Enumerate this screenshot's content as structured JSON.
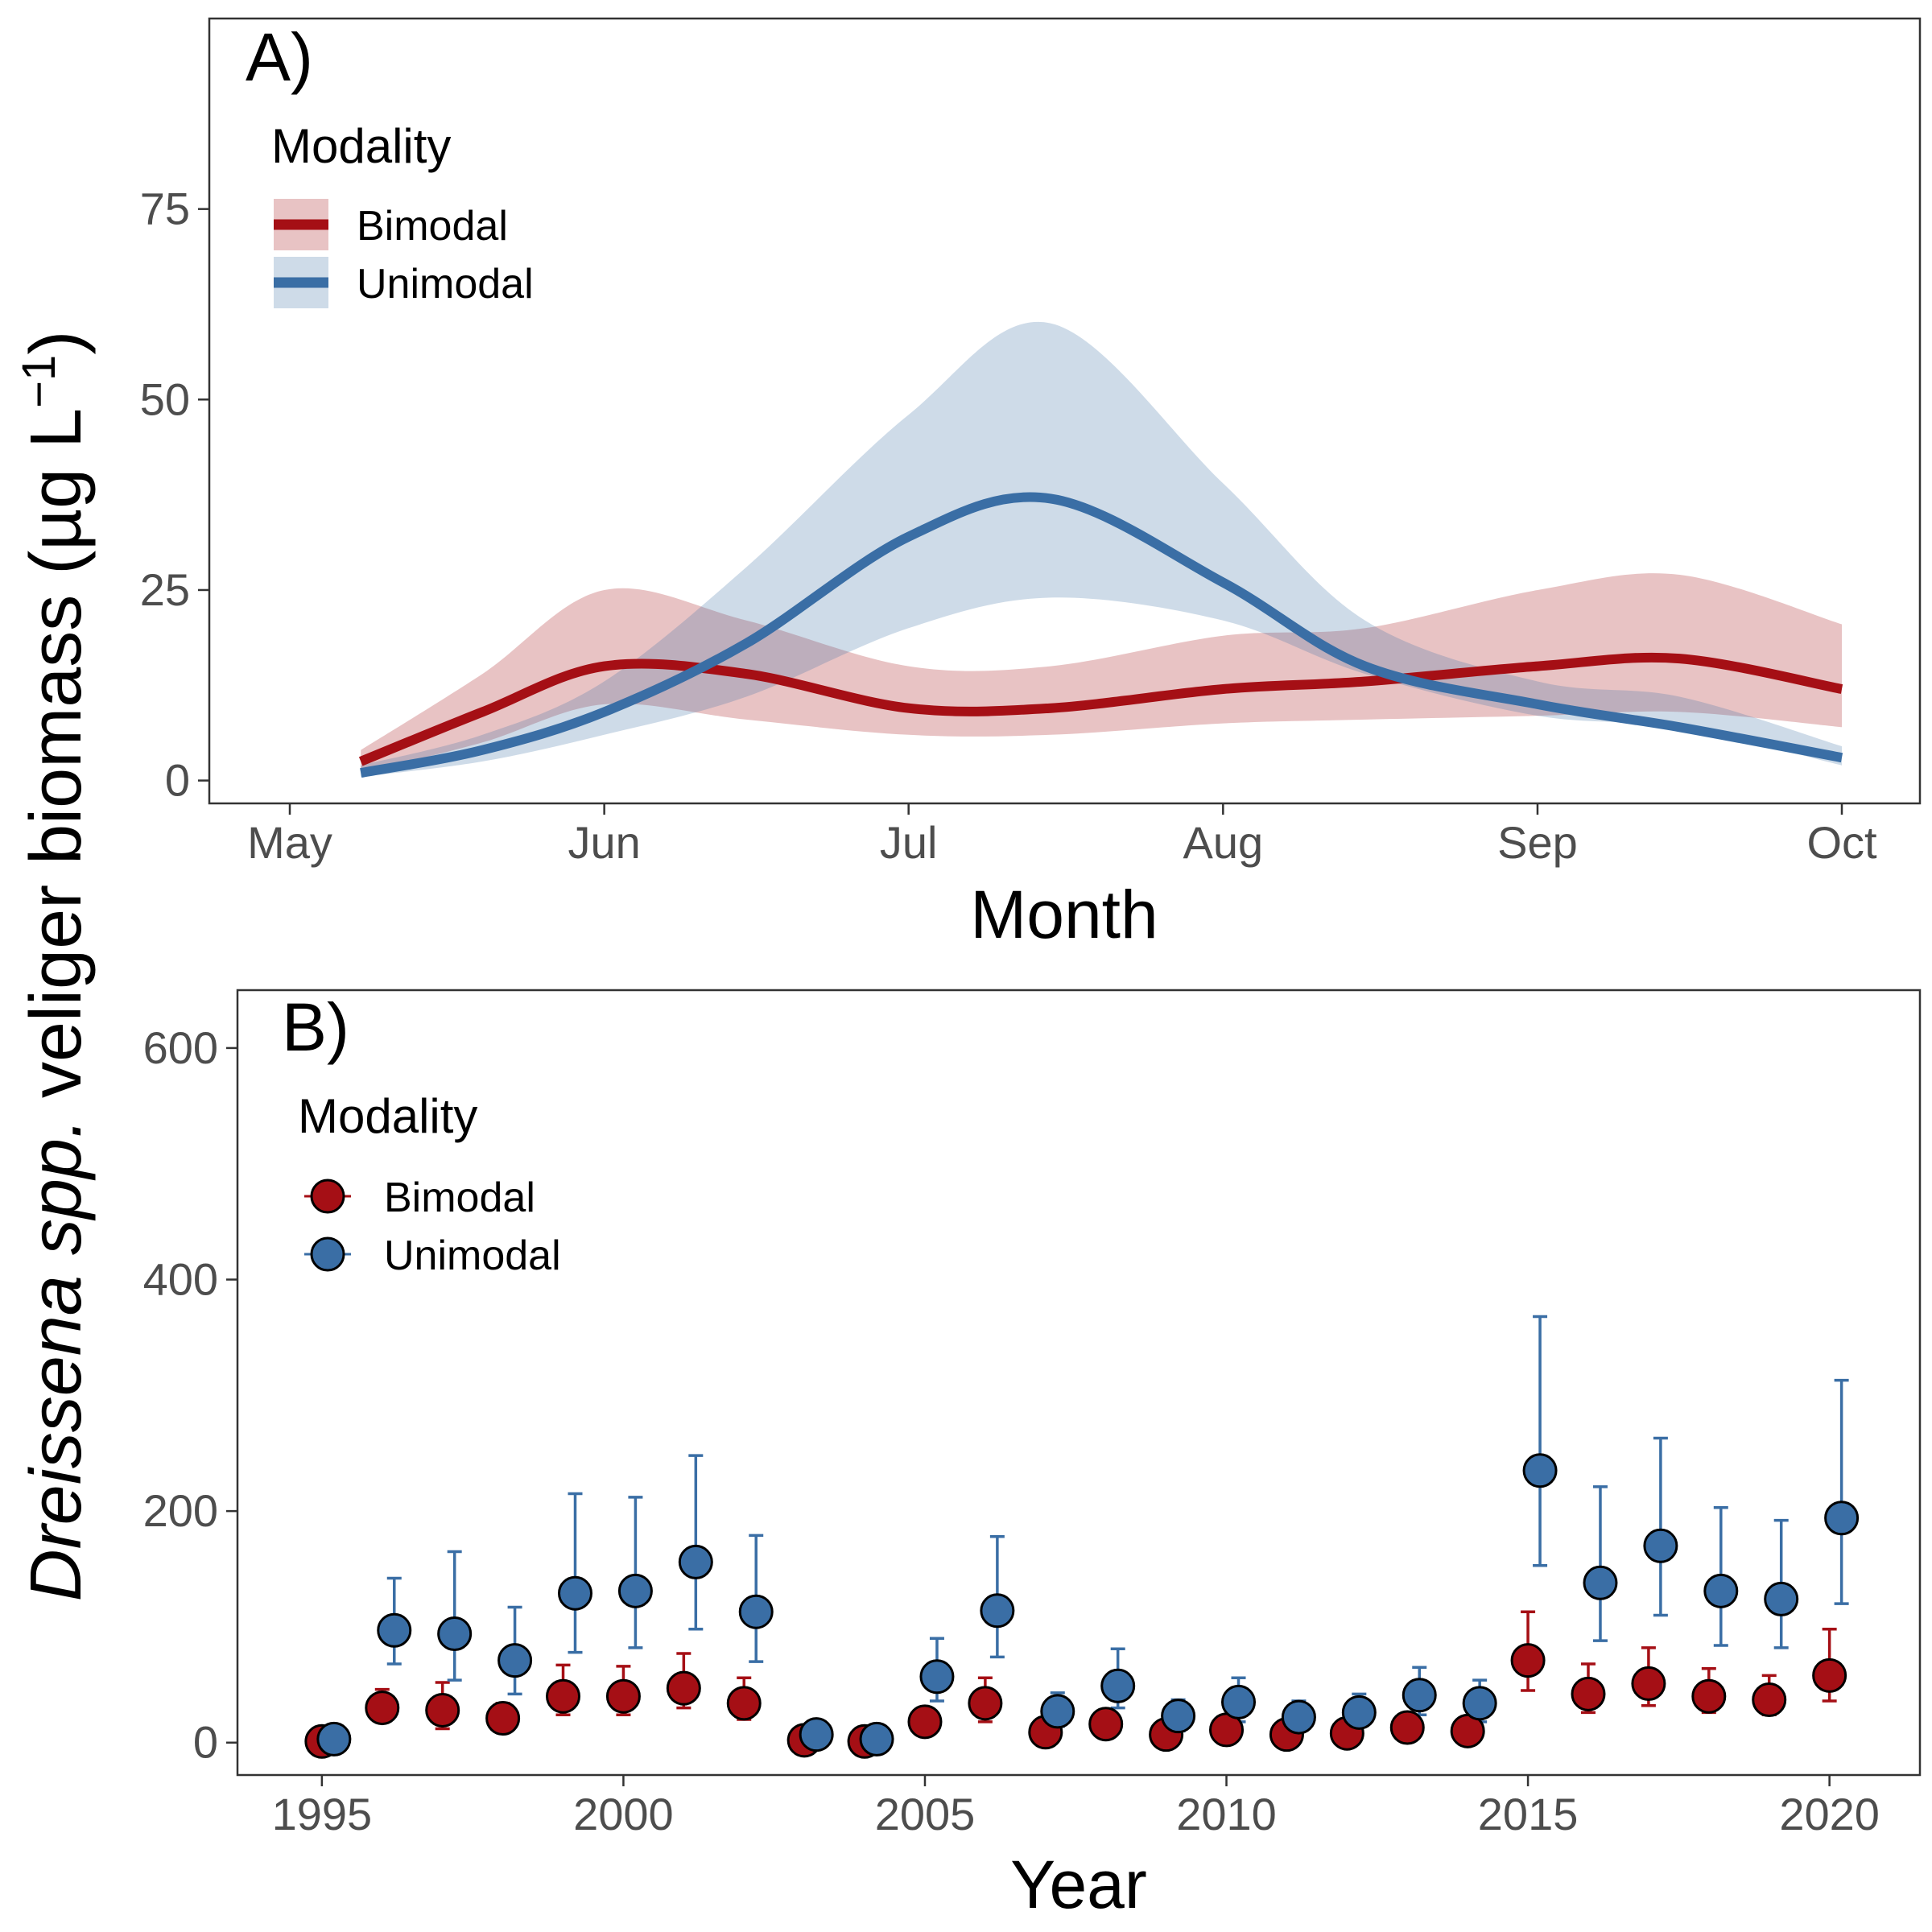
{
  "figure": {
    "ylabel_italic": "Dreissena spp.",
    "ylabel_rest": " veliger biomass (µg L",
    "ylabel_sup": "−1",
    "ylabel_close": ")"
  },
  "colors": {
    "bimodal": "#A50F15",
    "unimodal": "#3A6EA5"
  },
  "chart_data": [
    {
      "panel": "A)",
      "type": "line",
      "xlabel": "Month",
      "x_ticks": [
        "May",
        "Jun",
        "Jul",
        "Aug",
        "Sep",
        "Oct"
      ],
      "ylim": [
        -3,
        100
      ],
      "y_ticks": [
        "0",
        "25",
        "50",
        "75"
      ],
      "grid": false,
      "legend": {
        "title": "Modality",
        "position": "top-left",
        "entries": [
          "Bimodal",
          "Unimodal"
        ]
      },
      "series": [
        {
          "name": "Bimodal",
          "x": [
            "May 8",
            "May 20",
            "Jun 1",
            "Jun 15",
            "Jul 1",
            "Jul 15",
            "Aug 1",
            "Aug 15",
            "Sep 1",
            "Sep 15",
            "Oct 1"
          ],
          "y": [
            2.5,
            9,
            15,
            14,
            9.5,
            9.5,
            12,
            13,
            15,
            16,
            12
          ],
          "lower": [
            1,
            5,
            10,
            8,
            6,
            6,
            7.5,
            8,
            8.5,
            9,
            7
          ],
          "upper": [
            4,
            14,
            25,
            21,
            15,
            15,
            19,
            20,
            25,
            27,
            20.5
          ]
        },
        {
          "name": "Unimodal",
          "x": [
            "May 8",
            "May 20",
            "Jun 1",
            "Jun 15",
            "Jul 1",
            "Jul 15",
            "Aug 1",
            "Aug 15",
            "Sep 1",
            "Sep 15",
            "Oct 1"
          ],
          "y": [
            1,
            4,
            9,
            18,
            32,
            37,
            26,
            15,
            10,
            7,
            3
          ],
          "lower": [
            0.5,
            2.5,
            6,
            11,
            20,
            24,
            21,
            14,
            8.5,
            7,
            2
          ],
          "upper": [
            2,
            6,
            13,
            28,
            48,
            60,
            39,
            21,
            13,
            11,
            4.5
          ]
        }
      ]
    },
    {
      "panel": "B)",
      "type": "scatter",
      "xlabel": "Year",
      "x_ticks": [
        "1995",
        "2000",
        "2005",
        "2010",
        "2015",
        "2020"
      ],
      "xlim": [
        1993.6,
        2021.5
      ],
      "ylim": [
        -28,
        650
      ],
      "y_ticks": [
        "0",
        "200",
        "400",
        "600"
      ],
      "grid": false,
      "legend": {
        "title": "Modality",
        "position": "top-left",
        "entries": [
          "Bimodal",
          "Unimodal"
        ]
      },
      "series": [
        {
          "name": "Bimodal",
          "x": [
            1995,
            1996,
            1997,
            1998,
            1999,
            2000,
            2001,
            2002,
            2003,
            2004,
            2005,
            2006,
            2007,
            2008,
            2009,
            2010,
            2011,
            2012,
            2013,
            2014,
            2015,
            2016,
            2017,
            2018,
            2019,
            2020
          ],
          "y": [
            1,
            30,
            28,
            21,
            40,
            40,
            47,
            34,
            2,
            1,
            18,
            34,
            9,
            16,
            7,
            11,
            7,
            8,
            13,
            10,
            71,
            42,
            51,
            40,
            37,
            58
          ],
          "lower": [
            0,
            18,
            12,
            10,
            24,
            24,
            30,
            20,
            0,
            0,
            10,
            18,
            4,
            8,
            2,
            4,
            2,
            2,
            5,
            4,
            45,
            26,
            32,
            26,
            24,
            36
          ],
          "upper": [
            3,
            46,
            52,
            34,
            67,
            66,
            77,
            56,
            5,
            3,
            26,
            56,
            17,
            26,
            13,
            19,
            12,
            14,
            22,
            19,
            113,
            68,
            82,
            64,
            58,
            98
          ]
        },
        {
          "name": "Unimodal",
          "x": [
            1995.2,
            1996.2,
            1997.2,
            1998.2,
            1999.2,
            2000.2,
            2001.2,
            2002.2,
            2003.2,
            2004.2,
            2005.2,
            2006.2,
            2007.2,
            2008.2,
            2009.2,
            2010.2,
            2011.2,
            2012.2,
            2013.2,
            2014.2,
            2015.2,
            2016.2,
            2017.2,
            2018.2,
            2019.2,
            2020.2
          ],
          "y": [
            3,
            97,
            94,
            71,
            129,
            131,
            156,
            113,
            7,
            3,
            57,
            114,
            27,
            49,
            23,
            35,
            22,
            26,
            41,
            34,
            235,
            138,
            170,
            131,
            124,
            194
          ],
          "lower": [
            0,
            68,
            54,
            42,
            78,
            82,
            98,
            70,
            2,
            0,
            36,
            74,
            14,
            30,
            10,
            18,
            10,
            14,
            24,
            18,
            153,
            88,
            110,
            84,
            82,
            120
          ],
          "upper": [
            6,
            142,
            165,
            117,
            215,
            212,
            248,
            179,
            12,
            6,
            90,
            178,
            43,
            81,
            37,
            56,
            36,
            42,
            65,
            54,
            368,
            221,
            263,
            203,
            192,
            313
          ]
        }
      ]
    }
  ]
}
